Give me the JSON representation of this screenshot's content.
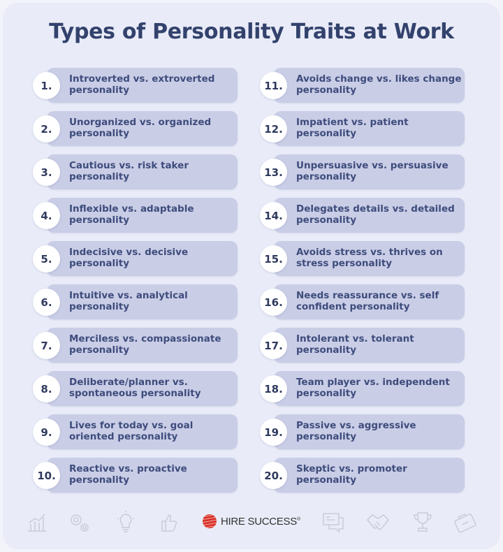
{
  "title": "Types of Personality Traits at Work",
  "left_items": [
    {
      "number": "1.",
      "text": "Introverted vs. extroverted personality"
    },
    {
      "number": "2.",
      "text": "Unorganized vs. organized personality"
    },
    {
      "number": "3.",
      "text": "Cautious vs. risk taker personality"
    },
    {
      "number": "4.",
      "text": "Inflexible vs. adaptable personality"
    },
    {
      "number": "5.",
      "text": "Indecisive vs. decisive personality"
    },
    {
      "number": "6.",
      "text": "Intuitive vs. analytical personality"
    },
    {
      "number": "7.",
      "text": "Merciless vs. compassionate personality"
    },
    {
      "number": "8.",
      "text": "Deliberate/planner vs. spontaneous personality"
    },
    {
      "number": "9.",
      "text": "Lives for today vs. goal oriented personality"
    },
    {
      "number": "10.",
      "text": "Reactive vs. proactive personality"
    }
  ],
  "right_items": [
    {
      "number": "11.",
      "text": "Avoids change vs. likes change personality"
    },
    {
      "number": "12.",
      "text": "Impatient vs. patient personality"
    },
    {
      "number": "13.",
      "text": "Unpersuasive vs. persuasive personality"
    },
    {
      "number": "14.",
      "text": "Delegates details vs. detailed personality"
    },
    {
      "number": "15.",
      "text": "Avoids stress vs. thrives on stress personality"
    },
    {
      "number": "16.",
      "text": "Needs reassurance vs. self confident personality"
    },
    {
      "number": "17.",
      "text": "Intolerant vs. tolerant personality"
    },
    {
      "number": "18.",
      "text": "Team player vs. independent personality"
    },
    {
      "number": "19.",
      "text": "Passive vs. aggressive personality"
    },
    {
      "number": "20.",
      "text": "Skeptic vs. promoter personality"
    }
  ],
  "footer": {
    "logo_text": "HIRE SUCCESS",
    "logo_mark": "®",
    "icons": [
      "bar-chart-icon",
      "gears-icon",
      "lightbulb-icon",
      "thumbs-up-icon",
      "chat-icon",
      "handshake-icon",
      "trophy-icon",
      "briefcase-icon"
    ]
  },
  "colors": {
    "title": "#33426d",
    "pill": "#c9cde6",
    "text": "#3e4c7c",
    "background": "#e9ecf8",
    "logo": "#d8332c"
  }
}
